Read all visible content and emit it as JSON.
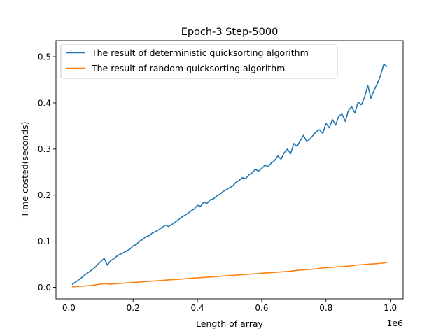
{
  "chart_data": {
    "type": "line",
    "title": "Epoch-3 Step-5000",
    "xlabel": "Length of array",
    "ylabel": "Time costed(seconds)",
    "x_offset_label": "1e6",
    "xlim": [
      -0.04,
      1.04
    ],
    "ylim": [
      -0.025,
      0.535
    ],
    "x_ticks": [
      0.0,
      0.2,
      0.4,
      0.6,
      0.8,
      1.0
    ],
    "x_tick_labels": [
      "0.0",
      "0.2",
      "0.4",
      "0.6",
      "0.8",
      "1.0"
    ],
    "y_ticks": [
      0.0,
      0.1,
      0.2,
      0.3,
      0.4,
      0.5
    ],
    "y_tick_labels": [
      "0.0",
      "0.1",
      "0.2",
      "0.3",
      "0.4",
      "0.5"
    ],
    "grid": false,
    "legend_position": "top-left",
    "series": [
      {
        "name": "The result of deterministic quicksorting algorithm",
        "color": "#1f77b4",
        "x": [
          0.01,
          0.02,
          0.03,
          0.04,
          0.05,
          0.06,
          0.07,
          0.08,
          0.09,
          0.1,
          0.11,
          0.12,
          0.13,
          0.14,
          0.15,
          0.16,
          0.17,
          0.18,
          0.19,
          0.2,
          0.21,
          0.22,
          0.23,
          0.24,
          0.25,
          0.26,
          0.27,
          0.28,
          0.29,
          0.3,
          0.31,
          0.32,
          0.33,
          0.34,
          0.35,
          0.36,
          0.37,
          0.38,
          0.39,
          0.4,
          0.41,
          0.42,
          0.43,
          0.44,
          0.45,
          0.46,
          0.47,
          0.48,
          0.49,
          0.5,
          0.51,
          0.52,
          0.53,
          0.54,
          0.55,
          0.56,
          0.57,
          0.58,
          0.59,
          0.6,
          0.61,
          0.62,
          0.63,
          0.64,
          0.65,
          0.66,
          0.67,
          0.68,
          0.69,
          0.7,
          0.71,
          0.72,
          0.73,
          0.74,
          0.75,
          0.76,
          0.77,
          0.78,
          0.79,
          0.8,
          0.81,
          0.82,
          0.83,
          0.84,
          0.85,
          0.86,
          0.87,
          0.88,
          0.89,
          0.9,
          0.91,
          0.92,
          0.93,
          0.94,
          0.95,
          0.96,
          0.97,
          0.98,
          0.99
        ],
        "y": [
          0.006,
          0.011,
          0.016,
          0.021,
          0.027,
          0.032,
          0.037,
          0.042,
          0.05,
          0.056,
          0.063,
          0.048,
          0.058,
          0.062,
          0.068,
          0.072,
          0.075,
          0.079,
          0.083,
          0.09,
          0.093,
          0.1,
          0.104,
          0.11,
          0.112,
          0.118,
          0.121,
          0.125,
          0.13,
          0.135,
          0.132,
          0.136,
          0.141,
          0.146,
          0.152,
          0.156,
          0.16,
          0.166,
          0.17,
          0.178,
          0.176,
          0.185,
          0.182,
          0.19,
          0.192,
          0.198,
          0.202,
          0.208,
          0.212,
          0.216,
          0.22,
          0.228,
          0.232,
          0.238,
          0.236,
          0.244,
          0.248,
          0.256,
          0.252,
          0.258,
          0.265,
          0.262,
          0.27,
          0.275,
          0.285,
          0.278,
          0.292,
          0.3,
          0.29,
          0.312,
          0.306,
          0.318,
          0.33,
          0.316,
          0.322,
          0.33,
          0.338,
          0.342,
          0.334,
          0.356,
          0.346,
          0.364,
          0.352,
          0.372,
          0.376,
          0.36,
          0.384,
          0.392,
          0.378,
          0.402,
          0.396,
          0.412,
          0.438,
          0.41,
          0.428,
          0.442,
          0.46,
          0.484,
          0.478
        ]
      },
      {
        "name": "The result of random quicksorting algorithm",
        "color": "#ff7f0e",
        "x": [
          0.01,
          0.03,
          0.05,
          0.07,
          0.09,
          0.11,
          0.13,
          0.15,
          0.17,
          0.19,
          0.21,
          0.23,
          0.25,
          0.27,
          0.29,
          0.31,
          0.33,
          0.35,
          0.37,
          0.39,
          0.41,
          0.43,
          0.45,
          0.47,
          0.49,
          0.51,
          0.53,
          0.55,
          0.57,
          0.59,
          0.61,
          0.63,
          0.65,
          0.67,
          0.69,
          0.71,
          0.73,
          0.75,
          0.77,
          0.79,
          0.81,
          0.83,
          0.85,
          0.87,
          0.89,
          0.91,
          0.93,
          0.95,
          0.97,
          0.99
        ],
        "y": [
          0.001,
          0.002,
          0.003,
          0.004,
          0.006,
          0.008,
          0.007,
          0.008,
          0.009,
          0.01,
          0.011,
          0.012,
          0.013,
          0.014,
          0.015,
          0.016,
          0.017,
          0.018,
          0.019,
          0.02,
          0.021,
          0.022,
          0.023,
          0.024,
          0.025,
          0.026,
          0.027,
          0.028,
          0.029,
          0.03,
          0.031,
          0.032,
          0.033,
          0.034,
          0.035,
          0.037,
          0.038,
          0.039,
          0.04,
          0.042,
          0.043,
          0.044,
          0.045,
          0.046,
          0.048,
          0.049,
          0.05,
          0.051,
          0.052,
          0.054
        ]
      }
    ]
  }
}
